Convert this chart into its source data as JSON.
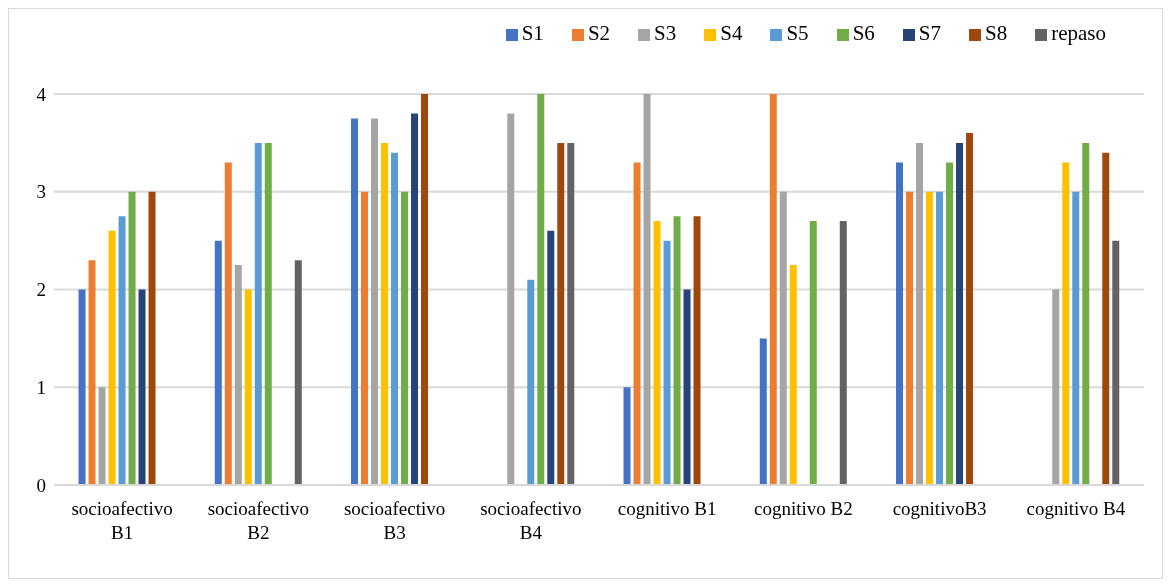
{
  "chart_data": {
    "type": "bar",
    "categories": [
      "socioafectivo B1",
      "socioafectivo B2",
      "socioafectivo B3",
      "socioafectivo B4",
      "cognitivo B1",
      "cognitivo B2",
      "cognitivoB3",
      "cognitivo B4"
    ],
    "series": [
      {
        "name": "S1",
        "color": "#4472c4",
        "values": [
          2,
          2.5,
          3.75,
          null,
          1,
          1.5,
          3.3,
          null
        ]
      },
      {
        "name": "S2",
        "color": "#ed7d31",
        "values": [
          2.3,
          3.3,
          3,
          null,
          3.3,
          4,
          3,
          null
        ]
      },
      {
        "name": "S3",
        "color": "#a5a5a5",
        "values": [
          1,
          2.25,
          3.75,
          3.8,
          4,
          3,
          3.5,
          2
        ]
      },
      {
        "name": "S4",
        "color": "#ffc000",
        "values": [
          2.6,
          2,
          3.5,
          null,
          2.7,
          2.25,
          3,
          3.3
        ]
      },
      {
        "name": "S5",
        "color": "#5b9bd5",
        "values": [
          2.75,
          3.5,
          3.4,
          2.1,
          2.5,
          null,
          3,
          3
        ]
      },
      {
        "name": "S6",
        "color": "#70ad47",
        "values": [
          3,
          3.5,
          3,
          4,
          2.75,
          2.7,
          3.3,
          3.5
        ]
      },
      {
        "name": "S7",
        "color": "#264478",
        "values": [
          2,
          null,
          3.8,
          2.6,
          2,
          null,
          3.5,
          null
        ]
      },
      {
        "name": "S8",
        "color": "#9e480e",
        "values": [
          3,
          null,
          4,
          3.5,
          2.75,
          null,
          3.6,
          3.4
        ]
      },
      {
        "name": "repaso",
        "color": "#636363",
        "values": [
          null,
          2.3,
          null,
          3.5,
          null,
          2.7,
          null,
          2.5
        ]
      }
    ],
    "ylim": [
      0,
      4
    ],
    "yticks": [
      0,
      1,
      2,
      3,
      4
    ],
    "grid": "y",
    "legend": "top right"
  }
}
